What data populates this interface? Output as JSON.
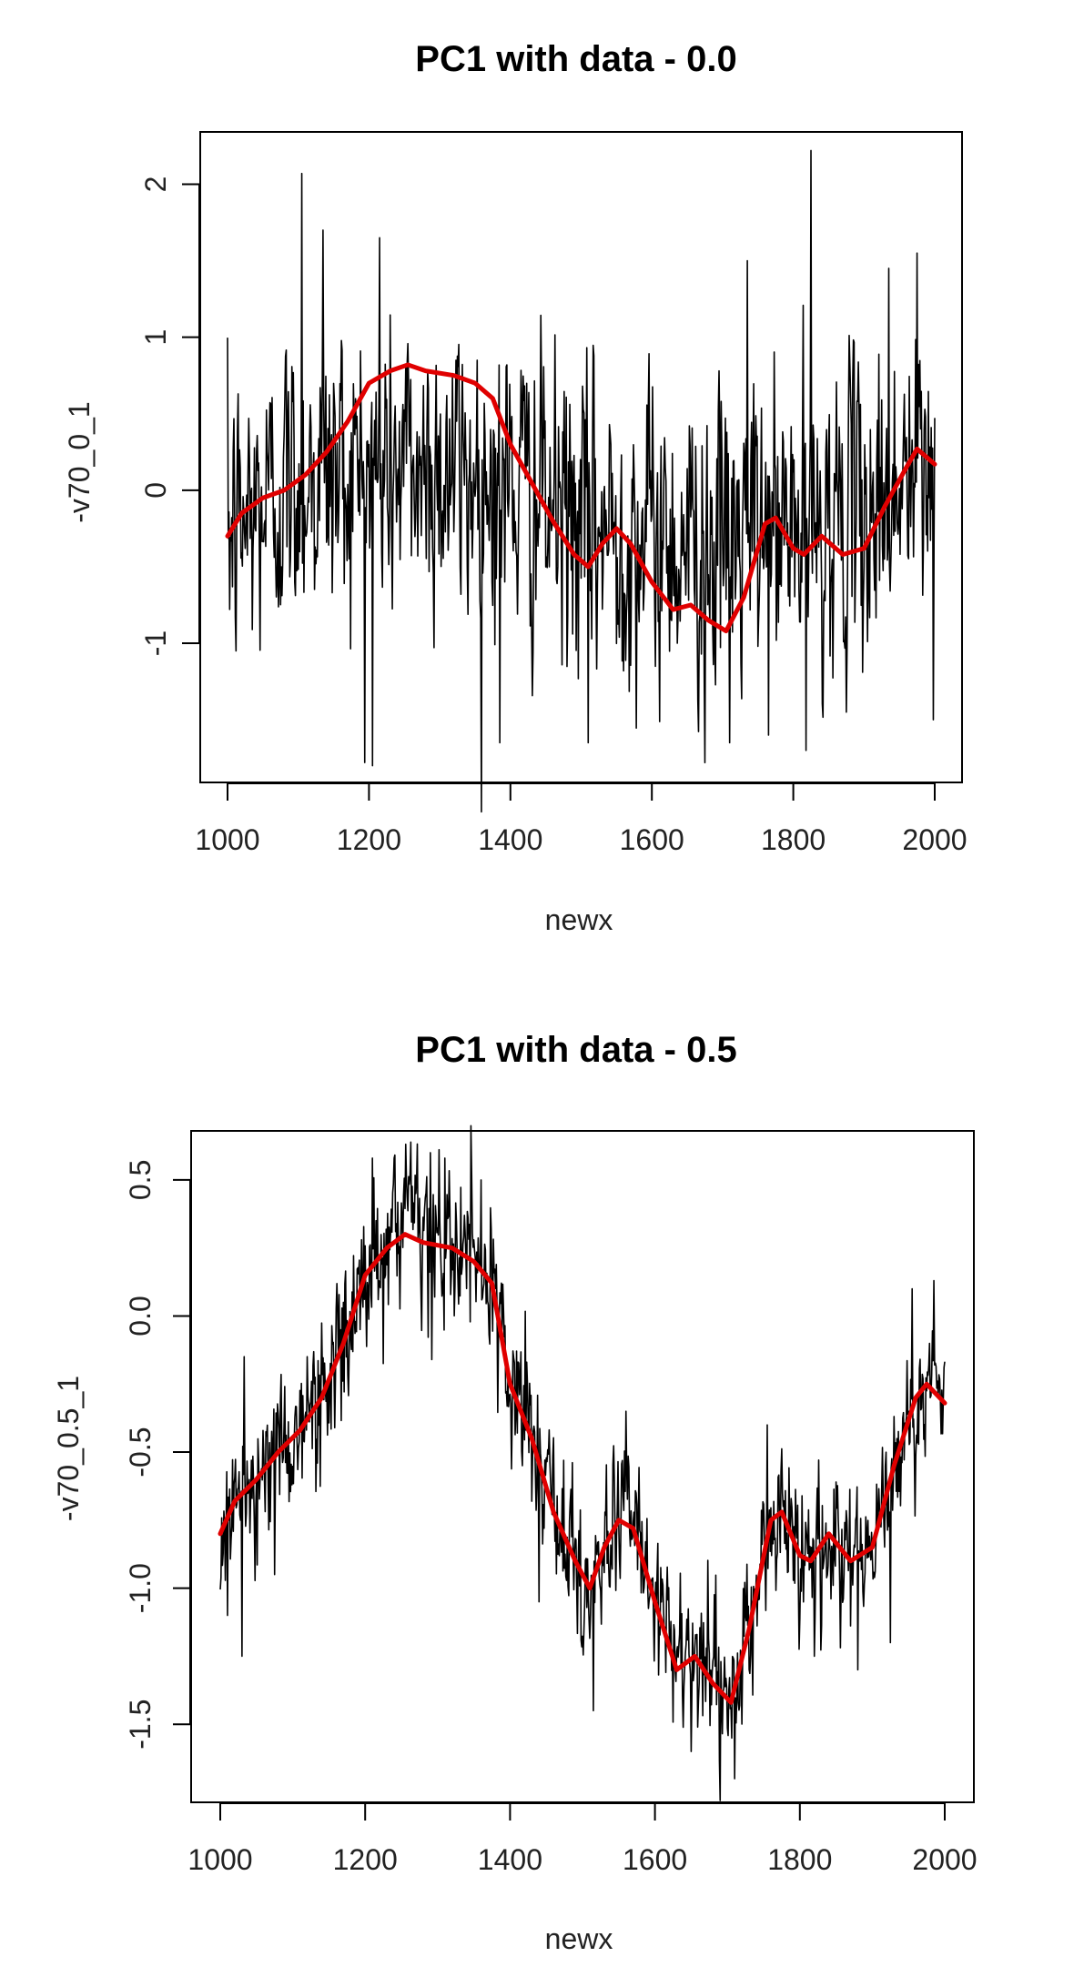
{
  "chart_data": [
    {
      "type": "line",
      "title": "PC1 with data - 0.0",
      "xlabel": "newx",
      "ylabel": "-v70_0_1",
      "xlim": [
        1000,
        2000
      ],
      "ylim": [
        -1.85,
        2.3
      ],
      "x_ticks": [
        1000,
        1200,
        1400,
        1600,
        1800,
        2000
      ],
      "x_tick_labels": [
        "1000",
        "1200",
        "1400",
        "1600",
        "1800",
        "2000"
      ],
      "y_ticks": [
        -1,
        0,
        1,
        2
      ],
      "y_tick_labels": [
        "-1",
        "0",
        "1",
        "2"
      ],
      "grid": false,
      "colors": {
        "data": "#000000",
        "smooth": "#e00000"
      },
      "series": [
        {
          "role": "annual-data",
          "color": "#000000",
          "x_start": 1000,
          "x_end": 2000,
          "baseline": [
            [
              1000,
              -0.3
            ],
            [
              1100,
              0.1
            ],
            [
              1200,
              0.15
            ],
            [
              1300,
              0.15
            ],
            [
              1400,
              0.05
            ],
            [
              1500,
              -0.25
            ],
            [
              1600,
              -0.3
            ],
            [
              1700,
              -0.35
            ],
            [
              1800,
              -0.25
            ],
            [
              1900,
              -0.15
            ],
            [
              2000,
              0.15
            ]
          ],
          "amplitude": 0.55,
          "spikes": [
            [
              1105,
              2.07
            ],
            [
              1135,
              1.7
            ],
            [
              1205,
              -1.8
            ],
            [
              1215,
              1.65
            ],
            [
              1385,
              -1.65
            ],
            [
              1510,
              -1.65
            ],
            [
              1675,
              -1.78
            ],
            [
              1710,
              -1.65
            ],
            [
              1735,
              1.5
            ],
            [
              1765,
              -1.6
            ],
            [
              1818,
              -1.7
            ],
            [
              1825,
              2.22
            ],
            [
              1875,
              -1.45
            ],
            [
              1935,
              1.45
            ],
            [
              1975,
              1.55
            ],
            [
              1998,
              -1.5
            ]
          ]
        },
        {
          "role": "smooth",
          "color": "#e00000",
          "x": [
            1000,
            1020,
            1050,
            1080,
            1110,
            1140,
            1170,
            1200,
            1230,
            1255,
            1280,
            1320,
            1350,
            1375,
            1400,
            1430,
            1460,
            1490,
            1510,
            1530,
            1550,
            1570,
            1600,
            1630,
            1655,
            1680,
            1705,
            1730,
            1760,
            1775,
            1800,
            1815,
            1840,
            1870,
            1900,
            1930,
            1960,
            1975,
            2000
          ],
          "y": [
            -0.3,
            -0.15,
            -0.05,
            0.0,
            0.1,
            0.25,
            0.45,
            0.7,
            0.78,
            0.82,
            0.78,
            0.75,
            0.7,
            0.6,
            0.3,
            0.05,
            -0.2,
            -0.42,
            -0.5,
            -0.35,
            -0.25,
            -0.35,
            -0.6,
            -0.78,
            -0.75,
            -0.85,
            -0.92,
            -0.7,
            -0.22,
            -0.18,
            -0.38,
            -0.42,
            -0.3,
            -0.42,
            -0.38,
            -0.1,
            0.15,
            0.27,
            0.17
          ]
        }
      ]
    },
    {
      "type": "line",
      "title": "PC1 with data - 0.5",
      "xlabel": "newx",
      "ylabel": "-v70_0.5_1",
      "xlim": [
        1000,
        2000
      ],
      "ylim": [
        -1.75,
        0.65
      ],
      "x_ticks": [
        1000,
        1200,
        1400,
        1600,
        1800,
        2000
      ],
      "x_tick_labels": [
        "1000",
        "1200",
        "1400",
        "1600",
        "1800",
        "2000"
      ],
      "y_ticks": [
        -1.5,
        -1.0,
        -0.5,
        0.0,
        0.5
      ],
      "y_tick_labels": [
        "-1.5",
        "-1.0",
        "-0.5",
        "0.0",
        "0.5"
      ],
      "grid": false,
      "colors": {
        "data": "#000000",
        "smooth": "#e00000"
      },
      "series": [
        {
          "role": "annual-data",
          "color": "#000000",
          "x_start": 1000,
          "x_end": 2000,
          "baseline": [
            [
              1000,
              -0.8
            ],
            [
              1020,
              -0.68
            ],
            [
              1050,
              -0.6
            ],
            [
              1080,
              -0.5
            ],
            [
              1110,
              -0.42
            ],
            [
              1140,
              -0.3
            ],
            [
              1170,
              -0.1
            ],
            [
              1200,
              0.15
            ],
            [
              1230,
              0.25
            ],
            [
              1255,
              0.3
            ],
            [
              1280,
              0.27
            ],
            [
              1320,
              0.25
            ],
            [
              1350,
              0.2
            ],
            [
              1375,
              0.12
            ],
            [
              1400,
              -0.25
            ],
            [
              1430,
              -0.45
            ],
            [
              1460,
              -0.72
            ],
            [
              1490,
              -0.9
            ],
            [
              1510,
              -1.0
            ],
            [
              1530,
              -0.85
            ],
            [
              1550,
              -0.75
            ],
            [
              1570,
              -0.78
            ],
            [
              1600,
              -1.05
            ],
            [
              1630,
              -1.3
            ],
            [
              1655,
              -1.25
            ],
            [
              1680,
              -1.35
            ],
            [
              1705,
              -1.42
            ],
            [
              1730,
              -1.15
            ],
            [
              1760,
              -0.75
            ],
            [
              1775,
              -0.72
            ],
            [
              1800,
              -0.88
            ],
            [
              1815,
              -0.9
            ],
            [
              1840,
              -0.8
            ],
            [
              1870,
              -0.9
            ],
            [
              1900,
              -0.85
            ],
            [
              1930,
              -0.55
            ],
            [
              1960,
              -0.3
            ],
            [
              1975,
              -0.25
            ],
            [
              2000,
              -0.32
            ]
          ],
          "amplitude": 0.16,
          "spikes": [
            [
              1010,
              -1.1
            ],
            [
              1030,
              -1.25
            ],
            [
              1075,
              -0.95
            ],
            [
              1210,
              0.58
            ],
            [
              1240,
              0.58
            ],
            [
              1290,
              0.6
            ],
            [
              1310,
              0.58
            ],
            [
              1360,
              0.5
            ],
            [
              1440,
              -1.05
            ],
            [
              1515,
              -1.45
            ],
            [
              1560,
              -0.35
            ],
            [
              1650,
              -1.6
            ],
            [
              1690,
              -1.78
            ],
            [
              1710,
              -1.7
            ],
            [
              1755,
              -0.4
            ],
            [
              1820,
              -1.25
            ],
            [
              1880,
              -1.3
            ],
            [
              1925,
              -1.2
            ],
            [
              1955,
              0.1
            ],
            [
              1985,
              0.13
            ]
          ]
        },
        {
          "role": "smooth",
          "color": "#e00000",
          "x": [
            1000,
            1020,
            1050,
            1080,
            1110,
            1140,
            1170,
            1200,
            1230,
            1255,
            1280,
            1320,
            1350,
            1375,
            1400,
            1430,
            1460,
            1490,
            1510,
            1530,
            1550,
            1570,
            1600,
            1630,
            1655,
            1680,
            1705,
            1730,
            1760,
            1775,
            1800,
            1815,
            1840,
            1870,
            1900,
            1930,
            1960,
            1975,
            2000
          ],
          "y": [
            -0.8,
            -0.68,
            -0.6,
            -0.5,
            -0.42,
            -0.3,
            -0.1,
            0.15,
            0.25,
            0.3,
            0.27,
            0.25,
            0.2,
            0.12,
            -0.25,
            -0.45,
            -0.72,
            -0.9,
            -1.0,
            -0.85,
            -0.75,
            -0.78,
            -1.05,
            -1.3,
            -1.25,
            -1.35,
            -1.42,
            -1.15,
            -0.75,
            -0.72,
            -0.88,
            -0.9,
            -0.8,
            -0.9,
            -0.85,
            -0.55,
            -0.3,
            -0.25,
            -0.32
          ]
        }
      ]
    }
  ]
}
